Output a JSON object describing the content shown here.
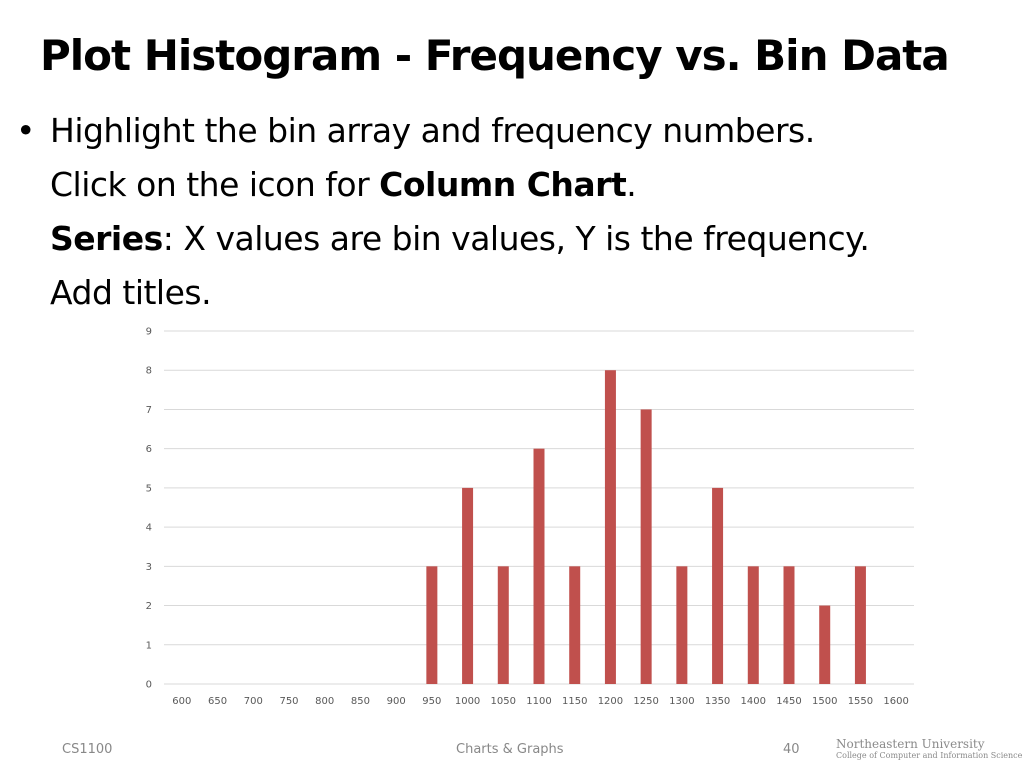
{
  "slide": {
    "title": "Plot Histogram - Frequency vs. Bin Data",
    "bullet": {
      "line1": "Highlight the bin array and frequency numbers.",
      "line2_prefix": "Click on the icon for ",
      "line2_bold": "Column Chart",
      "line2_suffix": ".",
      "line3_bold": "Series",
      "line3_rest": ": X values are bin values, Y is the frequency.",
      "line4": "Add titles."
    }
  },
  "chart_data": {
    "type": "bar",
    "categories": [
      "600",
      "650",
      "700",
      "750",
      "800",
      "850",
      "900",
      "950",
      "1000",
      "1050",
      "1100",
      "1150",
      "1200",
      "1250",
      "1300",
      "1350",
      "1400",
      "1450",
      "1500",
      "1550",
      "1600"
    ],
    "values": [
      0,
      0,
      0,
      0,
      0,
      0,
      0,
      3,
      5,
      3,
      6,
      3,
      8,
      7,
      3,
      5,
      3,
      3,
      2,
      3,
      0
    ],
    "yticks": [
      "0",
      "1",
      "2",
      "3",
      "4",
      "5",
      "6",
      "7",
      "8",
      "9"
    ],
    "ylim": [
      0,
      9
    ],
    "grid": true,
    "legend": "none",
    "bar_color": "#C0504D",
    "grid_color": "#D9D9D9",
    "title": "",
    "xlabel": "",
    "ylabel": ""
  },
  "footer": {
    "course": "CS1100",
    "topic": "Charts & Graphs",
    "page": "40",
    "logo_line1": "Northeastern University",
    "logo_line2": "College of Computer and Information Science"
  }
}
